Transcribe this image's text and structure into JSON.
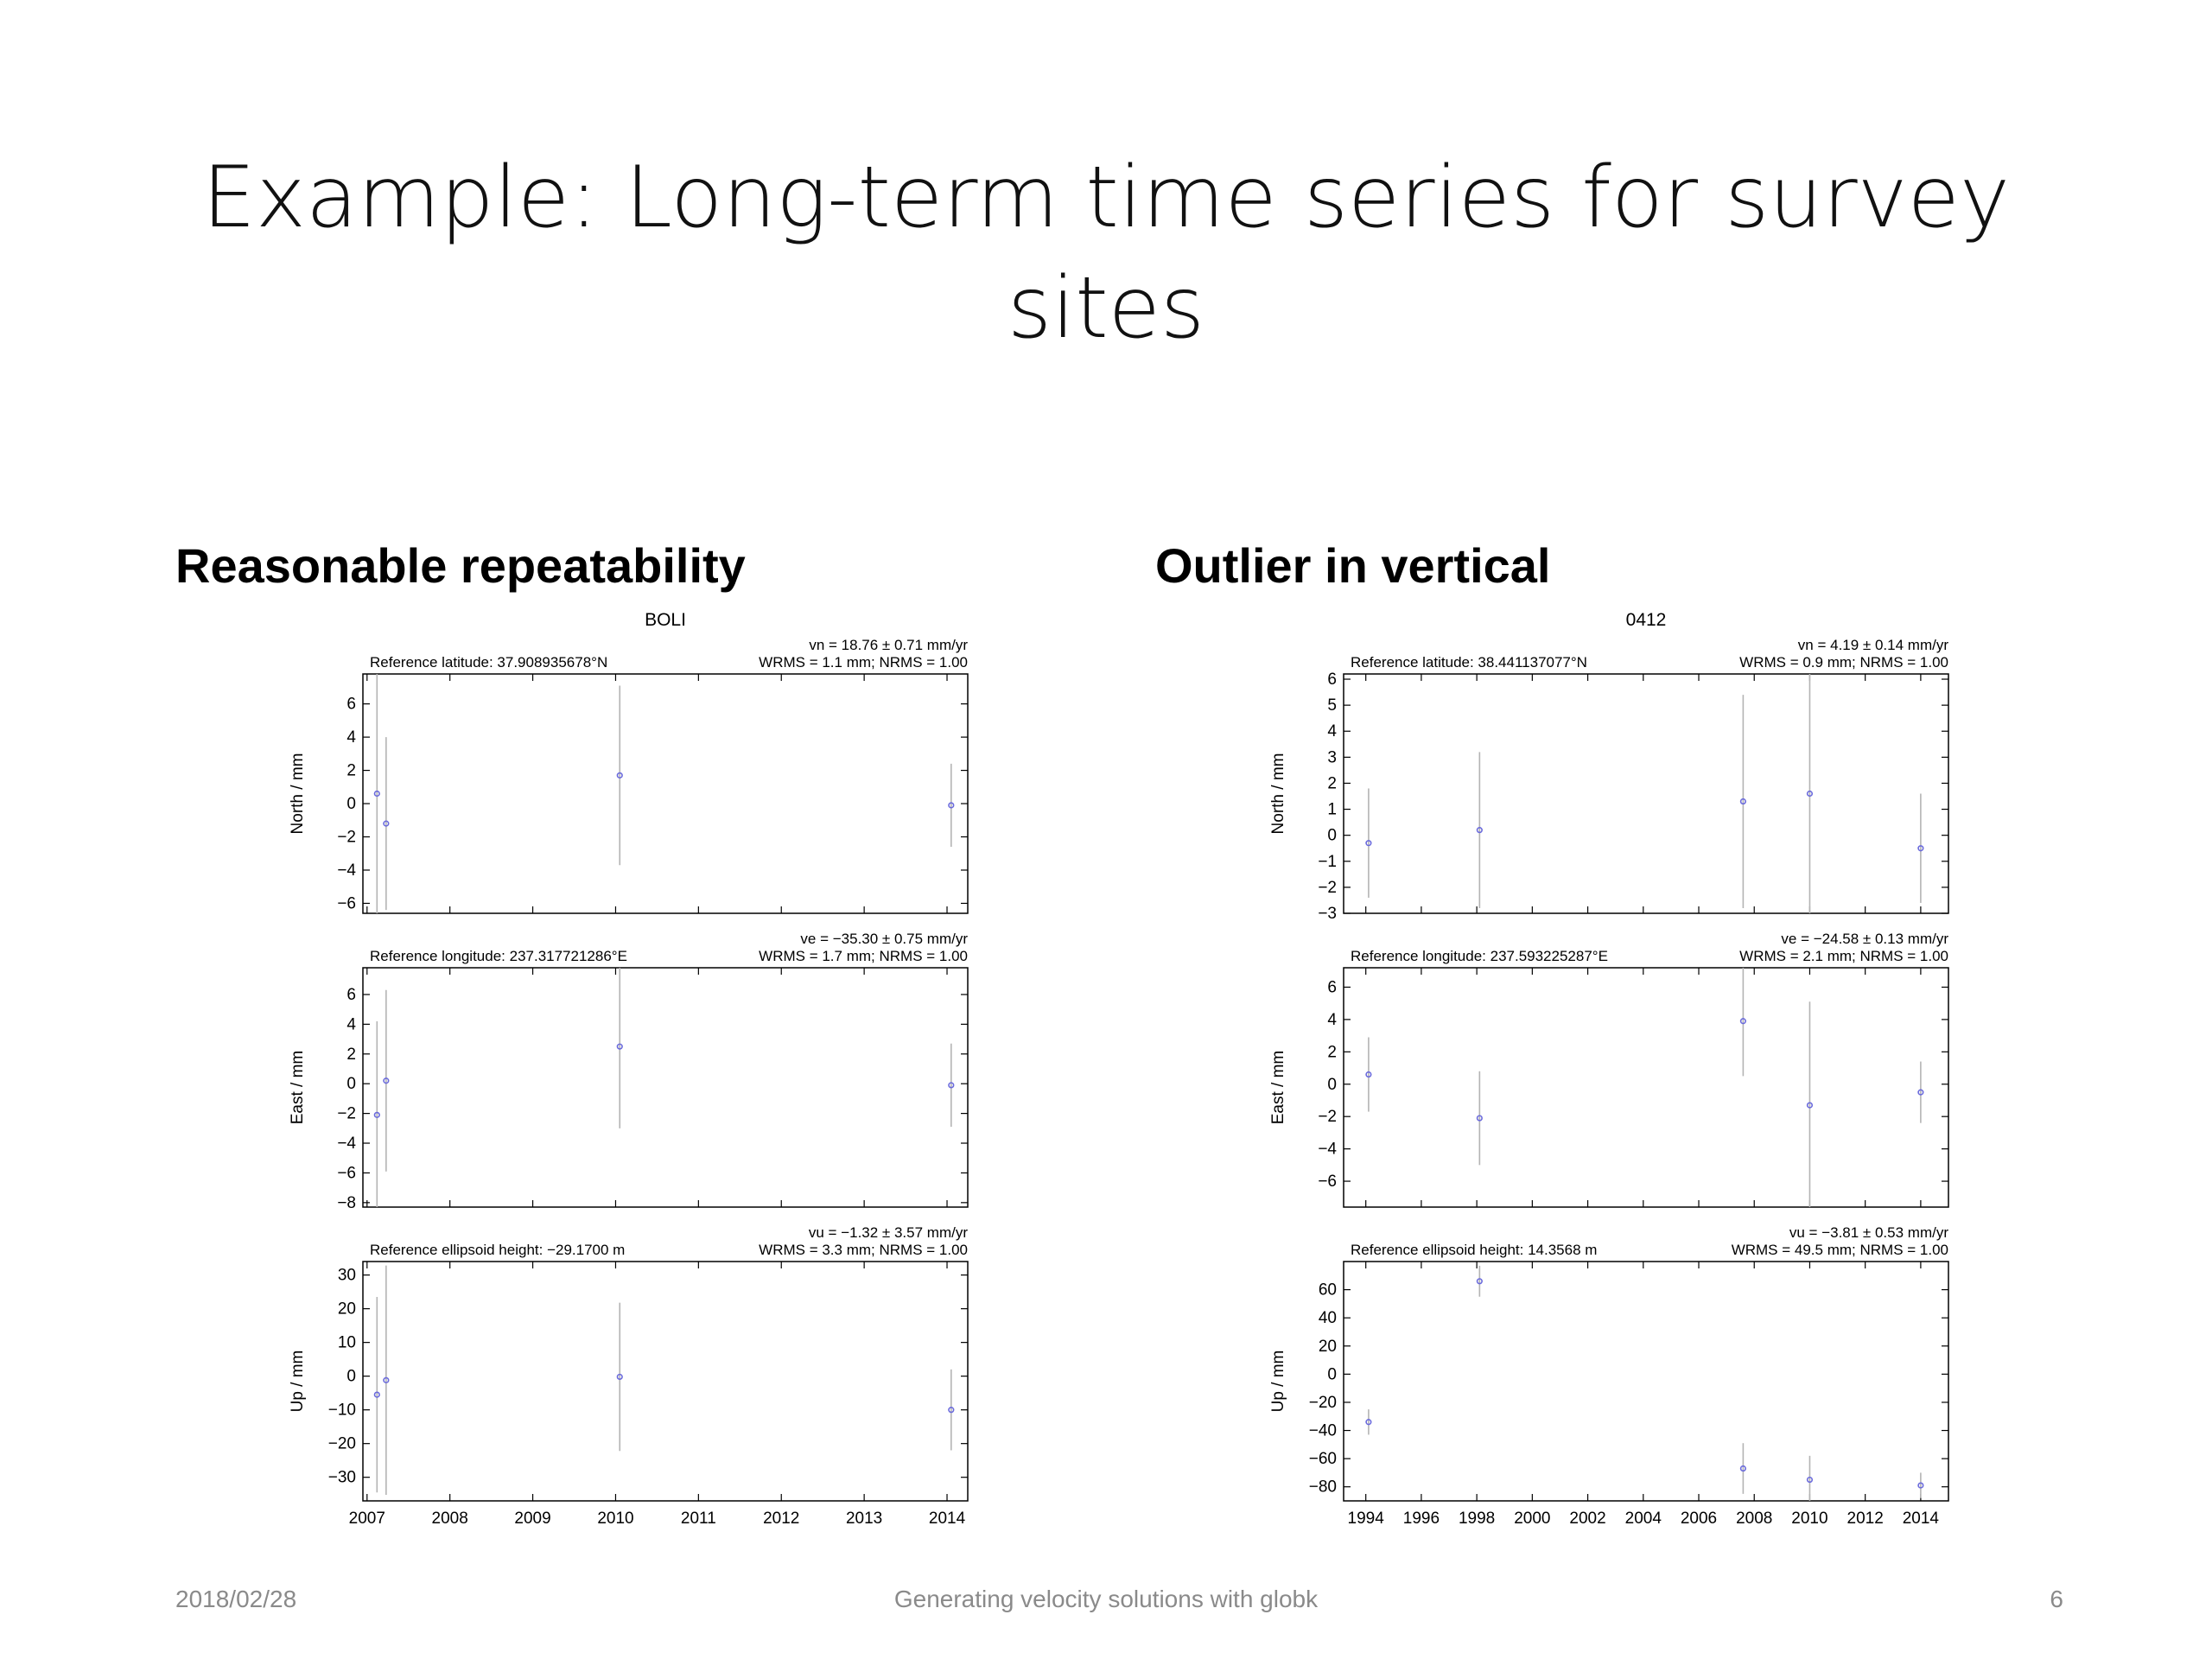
{
  "slide": {
    "title_line1": "Example: Long-term time series for survey",
    "title_line2": "sites",
    "left_heading": "Reasonable repeatability",
    "right_heading": "Outlier in vertical",
    "footer_date": "2018/02/28",
    "footer_center": "Generating velocity solutions with globk",
    "page_number": "6"
  },
  "colors": {
    "point": "#6a6adc",
    "errorbar": "#b4b4b4",
    "axes": "#000000"
  },
  "chart_data": [
    {
      "type": "scatter",
      "title": "BOLI",
      "x_ticks": [
        "2007",
        "2008",
        "2009",
        "2010",
        "2011",
        "2012",
        "2013",
        "2014"
      ],
      "xlim": [
        2006.95,
        2014.25
      ],
      "panels": [
        {
          "name": "North",
          "ylabel": "North / mm",
          "ref_label": "Reference latitude: 37.908935678°N",
          "velocity": "vn = 18.76 ± 0.71 mm/yr",
          "stats": "WRMS = 1.1 mm; NRMS = 1.00",
          "ylim": [
            -6.6,
            7.8
          ],
          "y_ticks": [
            -6,
            -4,
            -2,
            0,
            2,
            4,
            6
          ],
          "points": [
            {
              "x": 2007.12,
              "y": 0.6,
              "err": 9.0
            },
            {
              "x": 2007.23,
              "y": -1.2,
              "err": 5.2
            },
            {
              "x": 2010.05,
              "y": 1.7,
              "err": 5.4
            },
            {
              "x": 2014.05,
              "y": -0.1,
              "err": 2.5
            }
          ]
        },
        {
          "name": "East",
          "ylabel": "East / mm",
          "ref_label": "Reference longitude: 237.317721286°E",
          "velocity": "ve = −35.30 ± 0.75 mm/yr",
          "stats": "WRMS = 1.7 mm; NRMS = 1.00",
          "ylim": [
            -8.3,
            7.8
          ],
          "y_ticks": [
            -8,
            -6,
            -4,
            -2,
            0,
            2,
            4,
            6
          ],
          "points": [
            {
              "x": 2007.12,
              "y": -2.1,
              "err": 6.3
            },
            {
              "x": 2007.23,
              "y": 0.2,
              "err": 6.1
            },
            {
              "x": 2010.05,
              "y": 2.5,
              "err": 5.5
            },
            {
              "x": 2014.05,
              "y": -0.1,
              "err": 2.8
            }
          ]
        },
        {
          "name": "Up",
          "ylabel": "Up / mm",
          "ref_label": "Reference ellipsoid height: −29.1700 m",
          "velocity": "vu = −1.32 ± 3.57 mm/yr",
          "stats": "WRMS = 3.3 mm; NRMS = 1.00",
          "ylim": [
            -37,
            34
          ],
          "y_ticks": [
            -30,
            -20,
            -10,
            0,
            10,
            20,
            30
          ],
          "points": [
            {
              "x": 2007.12,
              "y": -5.5,
              "err": 29.0
            },
            {
              "x": 2007.23,
              "y": -1.2,
              "err": 34.0
            },
            {
              "x": 2010.05,
              "y": -0.2,
              "err": 22.0
            },
            {
              "x": 2014.05,
              "y": -10.0,
              "err": 12.0
            }
          ]
        }
      ]
    },
    {
      "type": "scatter",
      "title": "0412",
      "x_ticks": [
        "1994",
        "1996",
        "1998",
        "2000",
        "2002",
        "2004",
        "2006",
        "2008",
        "2010",
        "2012",
        "2014"
      ],
      "xlim": [
        1993.2,
        2015.0
      ],
      "panels": [
        {
          "name": "North",
          "ylabel": "North / mm",
          "ref_label": "Reference latitude: 38.441137077°N",
          "velocity": "vn = 4.19 ± 0.14 mm/yr",
          "stats": "WRMS = 0.9 mm; NRMS = 1.00",
          "ylim": [
            -3.0,
            6.2
          ],
          "y_ticks": [
            -3,
            -2,
            -1,
            0,
            1,
            2,
            3,
            4,
            5,
            6
          ],
          "points": [
            {
              "x": 1994.1,
              "y": -0.3,
              "err": 2.1
            },
            {
              "x": 1998.1,
              "y": 0.2,
              "err": 3.0
            },
            {
              "x": 2007.6,
              "y": 1.3,
              "err": 4.1
            },
            {
              "x": 2010.0,
              "y": 1.6,
              "err": 4.6
            },
            {
              "x": 2014.0,
              "y": -0.5,
              "err": 2.1
            }
          ]
        },
        {
          "name": "East",
          "ylabel": "East / mm",
          "ref_label": "Reference longitude: 237.593225287°E",
          "velocity": "ve = −24.58 ± 0.13 mm/yr",
          "stats": "WRMS = 2.1 mm; NRMS = 1.00",
          "ylim": [
            -7.6,
            7.2
          ],
          "y_ticks": [
            -6,
            -4,
            -2,
            0,
            2,
            4,
            6
          ],
          "points": [
            {
              "x": 1994.1,
              "y": 0.6,
              "err": 2.3
            },
            {
              "x": 1998.1,
              "y": -2.1,
              "err": 2.9
            },
            {
              "x": 2007.6,
              "y": 3.9,
              "err": 3.4
            },
            {
              "x": 2010.0,
              "y": -1.3,
              "err": 6.4
            },
            {
              "x": 2014.0,
              "y": -0.5,
              "err": 1.9
            }
          ]
        },
        {
          "name": "Up",
          "ylabel": "Up / mm",
          "ref_label": "Reference ellipsoid height: 14.3568 m",
          "velocity": "vu = −3.81 ± 0.53 mm/yr",
          "stats": "WRMS = 49.5 mm; NRMS = 1.00",
          "ylim": [
            -90,
            80
          ],
          "y_ticks": [
            -80,
            -60,
            -40,
            -20,
            0,
            20,
            40,
            60
          ],
          "points": [
            {
              "x": 1994.1,
              "y": -34,
              "err": 9
            },
            {
              "x": 1998.1,
              "y": 66,
              "err": 11
            },
            {
              "x": 2007.6,
              "y": -67,
              "err": 18
            },
            {
              "x": 2010.0,
              "y": -75,
              "err": 17
            },
            {
              "x": 2014.0,
              "y": -79,
              "err": 9
            }
          ]
        }
      ]
    }
  ]
}
